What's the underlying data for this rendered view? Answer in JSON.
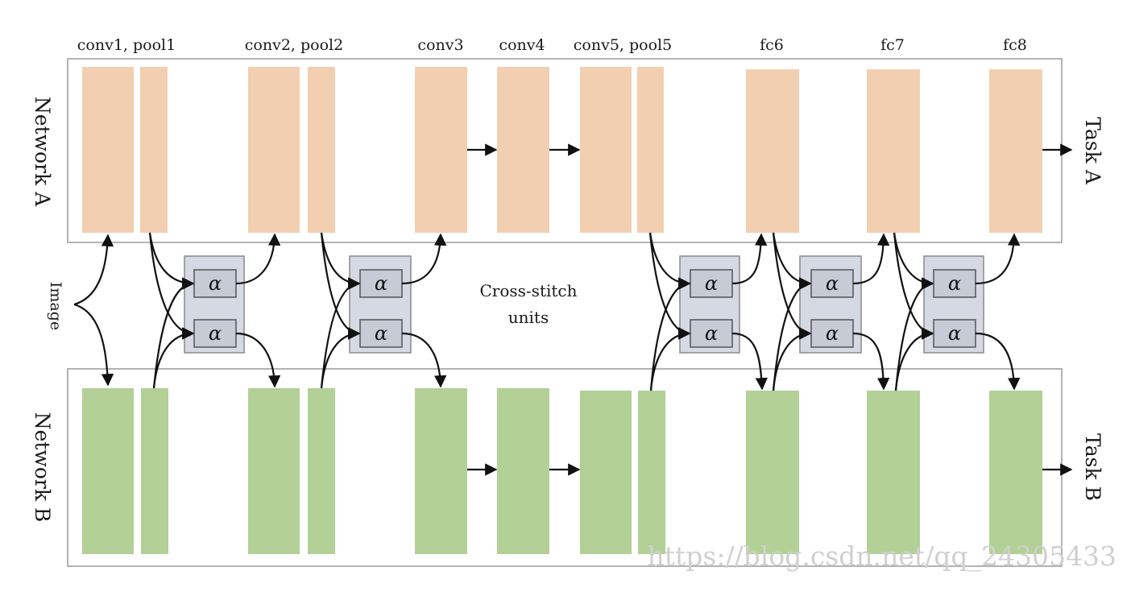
{
  "layer_labels": {
    "l1": "conv1, pool1",
    "l2": "conv2, pool2",
    "l3": "conv3",
    "l4": "conv4",
    "l5": "conv5, pool5",
    "l6": "fc6",
    "l7": "fc7",
    "l8": "fc8"
  },
  "network_a_label": "Network A",
  "network_b_label": "Network B",
  "task_a_label": "Task A",
  "task_b_label": "Task B",
  "input_label": "Image",
  "cross_stitch_label_line1": "Cross-stitch",
  "cross_stitch_label_line2": "units",
  "alpha_symbol": "α",
  "watermark": "https://blog.csdn.net/qq_24305433",
  "colors": {
    "network_a": "#f2cfb1",
    "network_b": "#b3d097",
    "cross_stitch_box": "#d5d9e3",
    "alpha_box": "#c6cbd6",
    "border": "#9a9a9a",
    "arrow": "#111111"
  }
}
